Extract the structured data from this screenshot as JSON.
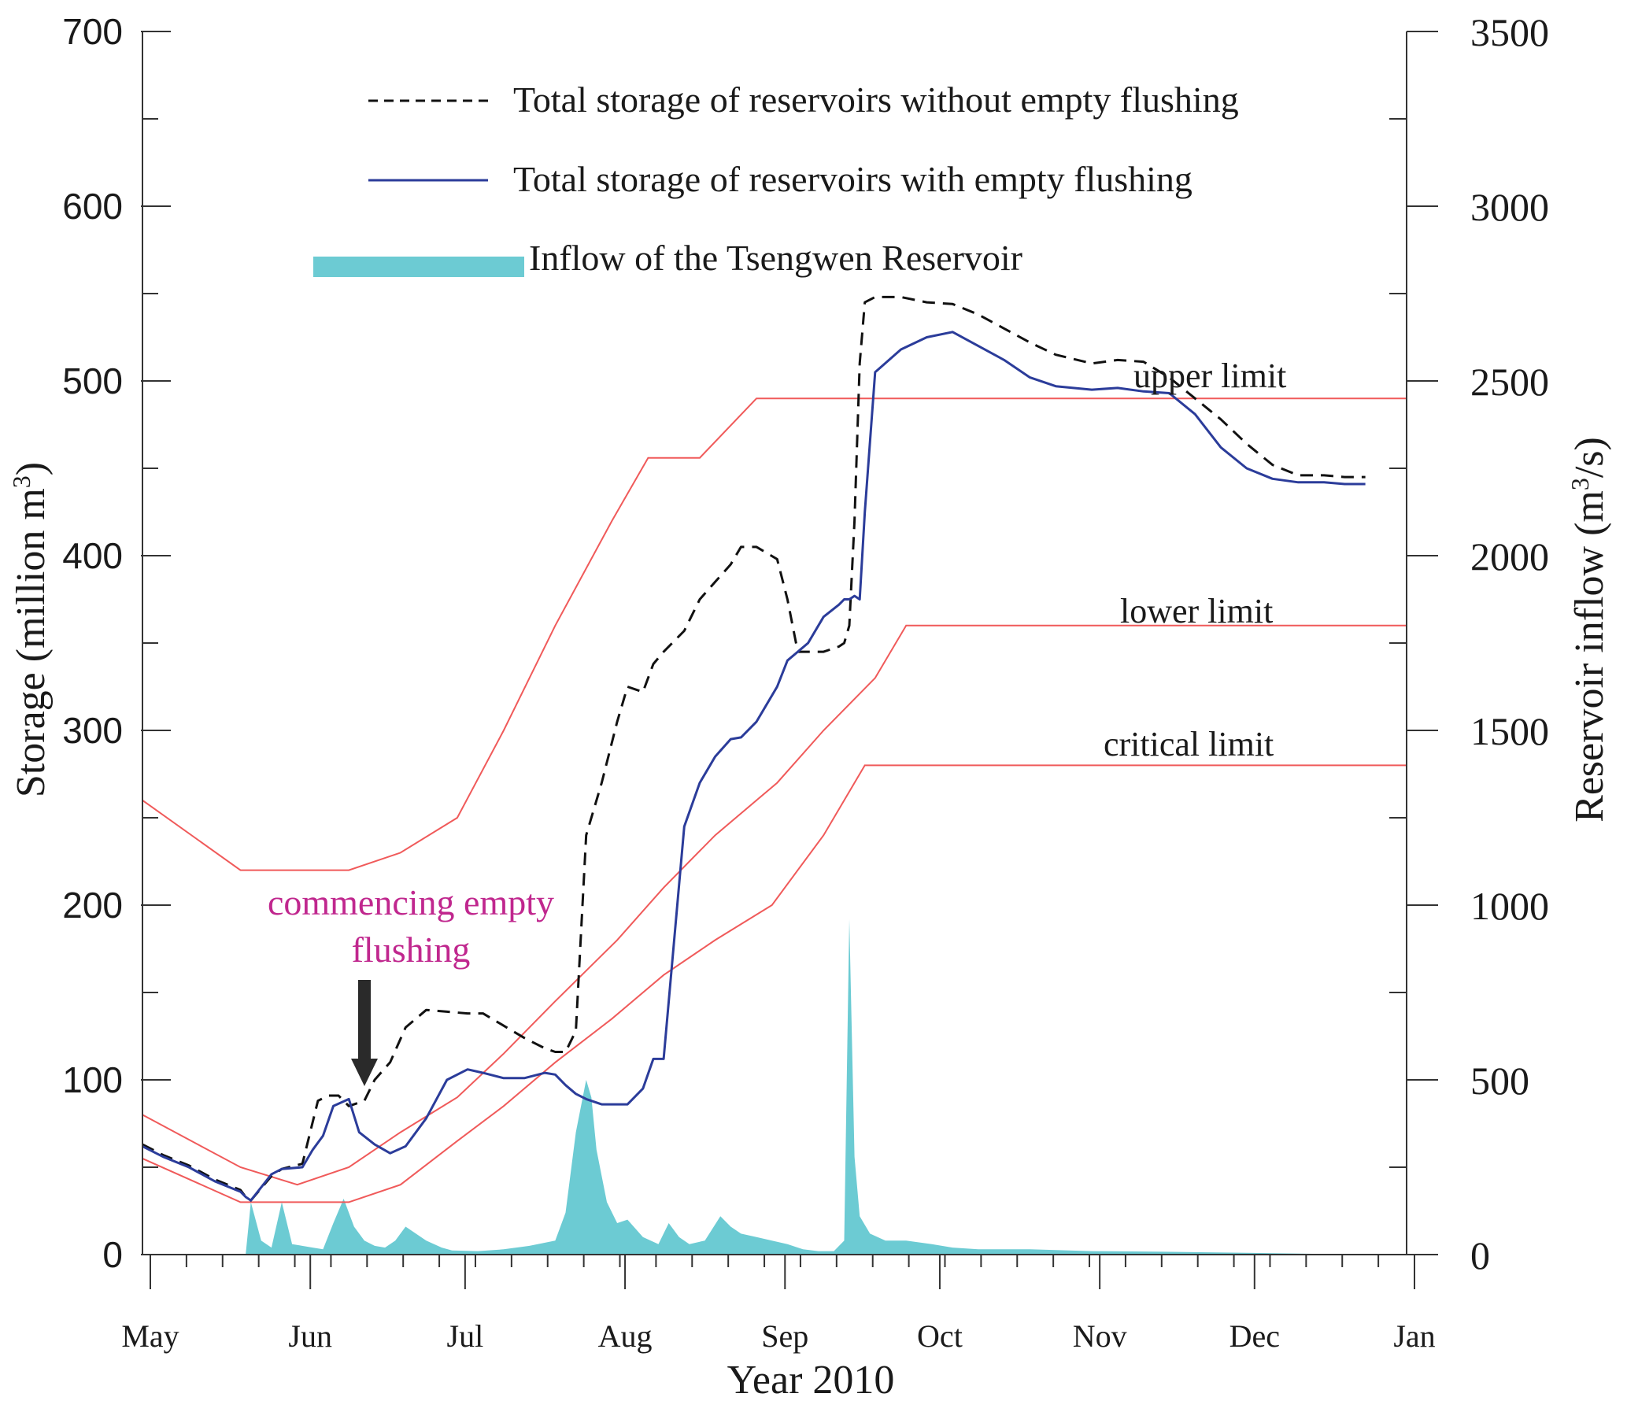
{
  "chart_data": {
    "type": "line",
    "title": "",
    "xlabel": "Year 2010",
    "ylabel_left": "Storage (million m",
    "ylabel_left_sup": "3",
    "ylabel_left_end": ")",
    "ylabel_right": "Reservoir inflow (m",
    "ylabel_right_sup": "3",
    "ylabel_right_end": "/s)",
    "xlim": [
      "2010-05-01",
      "2011-01-01"
    ],
    "ylim_left": [
      0,
      700
    ],
    "ylim_right": [
      0,
      3500
    ],
    "month_ticks": [
      "2010-05-01",
      "2010-06-01",
      "2010-07-01",
      "2010-08-01",
      "2010-09-01",
      "2010-10-01",
      "2010-11-01",
      "2010-12-01",
      "2011-01-01"
    ],
    "x_tick_labels": [
      "May",
      "Jun",
      "Jul",
      "Aug",
      "Sep",
      "Oct",
      "Nov",
      "Dec",
      "Jan"
    ],
    "y_left_ticks": [
      0,
      100,
      200,
      300,
      400,
      500,
      600,
      700
    ],
    "y_right_ticks": [
      0,
      500,
      1000,
      1500,
      2000,
      2500,
      3000,
      3500
    ],
    "legend": {
      "placement": "top",
      "entries": [
        {
          "key": "without",
          "label": "Total storage of reservoirs without empty flushing",
          "style": "dashed",
          "color": "#111111"
        },
        {
          "key": "with",
          "label": "Total storage of reservoirs with empty flushing",
          "style": "solid",
          "color": "#2b3c9a"
        },
        {
          "key": "inflow",
          "label": "Inflow of the Tsengwen Reservoir",
          "style": "area",
          "color": "#6ccbd3"
        }
      ]
    },
    "series": [
      {
        "key": "without",
        "axis": "left",
        "x": [
          "2010-05-01",
          "2010-05-05",
          "2010-05-10",
          "2010-05-15",
          "2010-05-20",
          "2010-05-21",
          "2010-05-22",
          "2010-05-26",
          "2010-05-28",
          "2010-06-01",
          "2010-06-04",
          "2010-06-06",
          "2010-06-08",
          "2010-06-10",
          "2010-06-13",
          "2010-06-15",
          "2010-06-18",
          "2010-06-21",
          "2010-06-25",
          "2010-06-29",
          "2010-07-03",
          "2010-07-06",
          "2010-07-10",
          "2010-07-14",
          "2010-07-18",
          "2010-07-20",
          "2010-07-22",
          "2010-07-24",
          "2010-07-26",
          "2010-07-29",
          "2010-08-01",
          "2010-08-03",
          "2010-08-06",
          "2010-08-08",
          "2010-08-10",
          "2010-08-14",
          "2010-08-17",
          "2010-08-20",
          "2010-08-23",
          "2010-08-25",
          "2010-08-28",
          "2010-09-01",
          "2010-09-03",
          "2010-09-05",
          "2010-09-07",
          "2010-09-10",
          "2010-09-13",
          "2010-09-14",
          "2010-09-15",
          "2010-09-16",
          "2010-09-17",
          "2010-09-18",
          "2010-09-20",
          "2010-09-25",
          "2010-09-30",
          "2010-10-05",
          "2010-10-10",
          "2010-10-15",
          "2010-10-20",
          "2010-10-25",
          "2010-11-01",
          "2010-11-06",
          "2010-11-11",
          "2010-11-16",
          "2010-11-21",
          "2010-11-26",
          "2010-12-01",
          "2010-12-06",
          "2010-12-11",
          "2010-12-16",
          "2010-12-20",
          "2010-12-24"
        ],
        "values": [
          63,
          57,
          51,
          43,
          37,
          33,
          31,
          45,
          49,
          52,
          88,
          91,
          91,
          85,
          88,
          100,
          110,
          130,
          140,
          139,
          138,
          138,
          131,
          124,
          118,
          116,
          116,
          128,
          240,
          270,
          305,
          325,
          322,
          338,
          345,
          357,
          375,
          385,
          395,
          405,
          405,
          398,
          375,
          345,
          345,
          345,
          348,
          350,
          360,
          420,
          510,
          545,
          548,
          548,
          545,
          544,
          538,
          530,
          522,
          515,
          510,
          512,
          511,
          502,
          490,
          478,
          464,
          452,
          446,
          446,
          445,
          445
        ]
      },
      {
        "key": "with",
        "axis": "left",
        "x": [
          "2010-05-01",
          "2010-05-05",
          "2010-05-10",
          "2010-05-15",
          "2010-05-20",
          "2010-05-21",
          "2010-05-22",
          "2010-05-26",
          "2010-05-28",
          "2010-06-01",
          "2010-06-03",
          "2010-06-05",
          "2010-06-07",
          "2010-06-10",
          "2010-06-12",
          "2010-06-15",
          "2010-06-18",
          "2010-06-21",
          "2010-06-25",
          "2010-06-29",
          "2010-07-03",
          "2010-07-06",
          "2010-07-10",
          "2010-07-14",
          "2010-07-18",
          "2010-07-20",
          "2010-07-22",
          "2010-07-24",
          "2010-07-26",
          "2010-07-29",
          "2010-08-01",
          "2010-08-03",
          "2010-08-06",
          "2010-08-08",
          "2010-08-10",
          "2010-08-14",
          "2010-08-17",
          "2010-08-20",
          "2010-08-23",
          "2010-08-25",
          "2010-08-28",
          "2010-09-01",
          "2010-09-03",
          "2010-09-05",
          "2010-09-07",
          "2010-09-10",
          "2010-09-13",
          "2010-09-14",
          "2010-09-15",
          "2010-09-16",
          "2010-09-17",
          "2010-09-18",
          "2010-09-20",
          "2010-09-25",
          "2010-09-30",
          "2010-10-05",
          "2010-10-10",
          "2010-10-15",
          "2010-10-20",
          "2010-10-25",
          "2010-11-01",
          "2010-11-06",
          "2010-11-11",
          "2010-11-16",
          "2010-11-21",
          "2010-11-26",
          "2010-12-01",
          "2010-12-06",
          "2010-12-11",
          "2010-12-16",
          "2010-12-20",
          "2010-12-24"
        ],
        "values": [
          62,
          56,
          50,
          42,
          36,
          33,
          31,
          46,
          49,
          50,
          60,
          68,
          85,
          89,
          70,
          63,
          58,
          62,
          78,
          100,
          106,
          104,
          101,
          101,
          104,
          103,
          97,
          92,
          89,
          86,
          86,
          86,
          95,
          112,
          112,
          245,
          270,
          285,
          295,
          296,
          305,
          325,
          340,
          345,
          350,
          365,
          372,
          375,
          375,
          377,
          375,
          425,
          505,
          518,
          525,
          528,
          520,
          512,
          502,
          497,
          495,
          496,
          494,
          493,
          481,
          462,
          450,
          444,
          442,
          442,
          441,
          441
        ]
      },
      {
        "key": "inflow",
        "axis": "right",
        "x": [
          "2010-05-01",
          "2010-05-21",
          "2010-05-22",
          "2010-05-24",
          "2010-05-26",
          "2010-05-28",
          "2010-05-30",
          "2010-06-03",
          "2010-06-05",
          "2010-06-07",
          "2010-06-09",
          "2010-06-11",
          "2010-06-13",
          "2010-06-15",
          "2010-06-17",
          "2010-06-19",
          "2010-06-21",
          "2010-06-25",
          "2010-06-28",
          "2010-06-30",
          "2010-07-05",
          "2010-07-10",
          "2010-07-15",
          "2010-07-20",
          "2010-07-22",
          "2010-07-24",
          "2010-07-26",
          "2010-07-27",
          "2010-07-28",
          "2010-07-30",
          "2010-08-01",
          "2010-08-03",
          "2010-08-06",
          "2010-08-09",
          "2010-08-11",
          "2010-08-13",
          "2010-08-15",
          "2010-08-18",
          "2010-08-21",
          "2010-08-23",
          "2010-08-25",
          "2010-08-28",
          "2010-08-31",
          "2010-09-03",
          "2010-09-06",
          "2010-09-09",
          "2010-09-12",
          "2010-09-14",
          "2010-09-15",
          "2010-09-16",
          "2010-09-17",
          "2010-09-19",
          "2010-09-22",
          "2010-09-26",
          "2010-10-01",
          "2010-10-05",
          "2010-10-10",
          "2010-10-20",
          "2010-11-01",
          "2010-11-15",
          "2010-12-01",
          "2010-12-24"
        ],
        "values": [
          0,
          0,
          150,
          40,
          20,
          150,
          30,
          20,
          15,
          90,
          160,
          80,
          40,
          25,
          20,
          40,
          80,
          40,
          20,
          12,
          10,
          15,
          25,
          40,
          120,
          350,
          500,
          450,
          300,
          150,
          90,
          100,
          50,
          30,
          90,
          50,
          30,
          40,
          110,
          80,
          60,
          50,
          40,
          30,
          15,
          10,
          10,
          40,
          960,
          280,
          110,
          60,
          40,
          40,
          30,
          20,
          15,
          15,
          10,
          8,
          5,
          0
        ]
      }
    ],
    "limit_lines": [
      {
        "label": "upper limit",
        "color": "#f05a5a",
        "x": [
          "2010-05-01",
          "2010-05-20",
          "2010-06-10",
          "2010-06-20",
          "2010-07-01",
          "2010-07-10",
          "2010-07-20",
          "2010-07-31",
          "2010-08-07",
          "2010-08-17",
          "2010-08-28",
          "2011-01-01"
        ],
        "values": [
          260,
          220,
          220,
          230,
          250,
          300,
          360,
          420,
          456,
          456,
          490,
          490
        ]
      },
      {
        "label": "lower limit",
        "color": "#f05a5a",
        "x": [
          "2010-05-01",
          "2010-05-20",
          "2010-05-31",
          "2010-06-10",
          "2010-06-20",
          "2010-07-01",
          "2010-07-10",
          "2010-07-20",
          "2010-08-01",
          "2010-08-10",
          "2010-08-20",
          "2010-09-01",
          "2010-09-10",
          "2010-09-20",
          "2010-09-26",
          "2011-01-01"
        ],
        "values": [
          80,
          50,
          40,
          50,
          70,
          90,
          115,
          145,
          180,
          210,
          240,
          270,
          300,
          330,
          360,
          360
        ]
      },
      {
        "label": "critical limit",
        "color": "#f05a5a",
        "x": [
          "2010-05-01",
          "2010-05-20",
          "2010-06-10",
          "2010-06-20",
          "2010-07-01",
          "2010-07-10",
          "2010-07-20",
          "2010-07-31",
          "2010-08-10",
          "2010-08-20",
          "2010-08-31",
          "2010-09-10",
          "2010-09-18",
          "2011-01-01"
        ],
        "values": [
          55,
          30,
          30,
          40,
          65,
          85,
          110,
          135,
          160,
          180,
          200,
          240,
          280,
          280
        ]
      }
    ],
    "annotation": {
      "lines": [
        "commencing empty",
        "flushing"
      ],
      "color": "#c0278e",
      "arrow_points_to": {
        "x": "2010-06-04",
        "y": 91
      }
    },
    "grid": false
  }
}
